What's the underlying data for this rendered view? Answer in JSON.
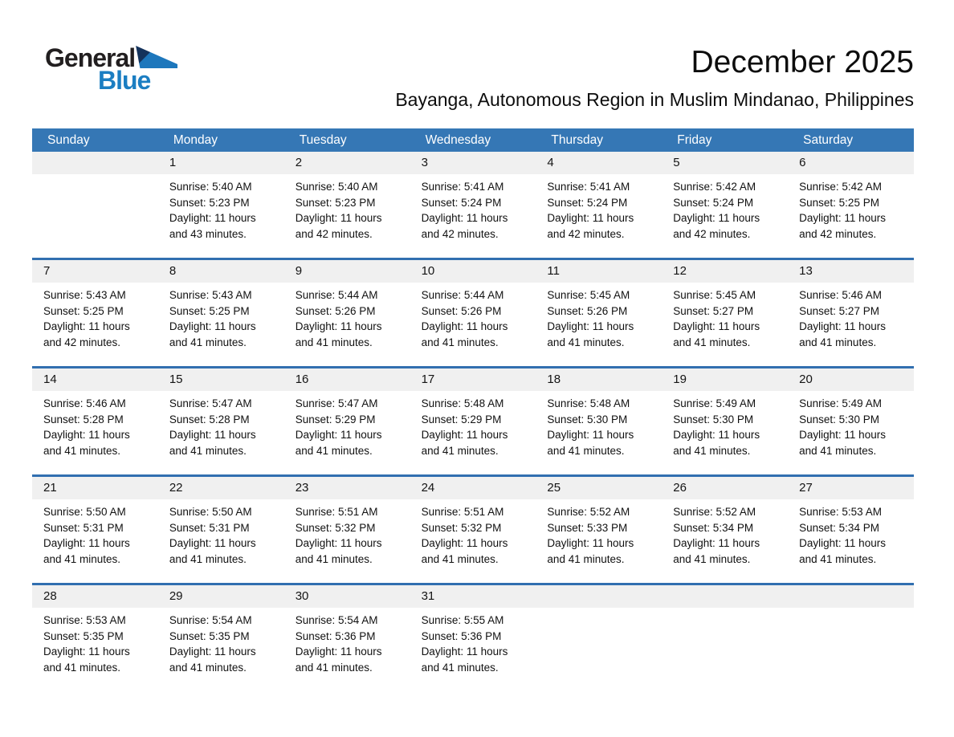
{
  "logo": {
    "word1": "General",
    "word2": "Blue"
  },
  "header": {
    "title": "December 2025",
    "subtitle": "Bayanga, Autonomous Region in Muslim Mindanao, Philippines"
  },
  "colors": {
    "weekday_header_bg": "#3577b5",
    "weekday_header_text": "#ffffff",
    "week_separator": "#316fb0",
    "day_strip_bg": "#f0f0f0",
    "logo_black": "#221f20",
    "logo_blue": "#1b7ec2",
    "logo_triangle_navy": "#14335c",
    "logo_triangle_blue": "#1d77bc"
  },
  "calendar": {
    "weekday_headers": [
      "Sunday",
      "Monday",
      "Tuesday",
      "Wednesday",
      "Thursday",
      "Friday",
      "Saturday"
    ],
    "labels": {
      "sunrise": "Sunrise:",
      "sunset": "Sunset:",
      "daylight": "Daylight:"
    },
    "weeks": [
      [
        null,
        {
          "day": "1",
          "sunrise": "5:40 AM",
          "sunset": "5:23 PM",
          "daylight": "11 hours and 43 minutes."
        },
        {
          "day": "2",
          "sunrise": "5:40 AM",
          "sunset": "5:23 PM",
          "daylight": "11 hours and 42 minutes."
        },
        {
          "day": "3",
          "sunrise": "5:41 AM",
          "sunset": "5:24 PM",
          "daylight": "11 hours and 42 minutes."
        },
        {
          "day": "4",
          "sunrise": "5:41 AM",
          "sunset": "5:24 PM",
          "daylight": "11 hours and 42 minutes."
        },
        {
          "day": "5",
          "sunrise": "5:42 AM",
          "sunset": "5:24 PM",
          "daylight": "11 hours and 42 minutes."
        },
        {
          "day": "6",
          "sunrise": "5:42 AM",
          "sunset": "5:25 PM",
          "daylight": "11 hours and 42 minutes."
        }
      ],
      [
        {
          "day": "7",
          "sunrise": "5:43 AM",
          "sunset": "5:25 PM",
          "daylight": "11 hours and 42 minutes."
        },
        {
          "day": "8",
          "sunrise": "5:43 AM",
          "sunset": "5:25 PM",
          "daylight": "11 hours and 41 minutes."
        },
        {
          "day": "9",
          "sunrise": "5:44 AM",
          "sunset": "5:26 PM",
          "daylight": "11 hours and 41 minutes."
        },
        {
          "day": "10",
          "sunrise": "5:44 AM",
          "sunset": "5:26 PM",
          "daylight": "11 hours and 41 minutes."
        },
        {
          "day": "11",
          "sunrise": "5:45 AM",
          "sunset": "5:26 PM",
          "daylight": "11 hours and 41 minutes."
        },
        {
          "day": "12",
          "sunrise": "5:45 AM",
          "sunset": "5:27 PM",
          "daylight": "11 hours and 41 minutes."
        },
        {
          "day": "13",
          "sunrise": "5:46 AM",
          "sunset": "5:27 PM",
          "daylight": "11 hours and 41 minutes."
        }
      ],
      [
        {
          "day": "14",
          "sunrise": "5:46 AM",
          "sunset": "5:28 PM",
          "daylight": "11 hours and 41 minutes."
        },
        {
          "day": "15",
          "sunrise": "5:47 AM",
          "sunset": "5:28 PM",
          "daylight": "11 hours and 41 minutes."
        },
        {
          "day": "16",
          "sunrise": "5:47 AM",
          "sunset": "5:29 PM",
          "daylight": "11 hours and 41 minutes."
        },
        {
          "day": "17",
          "sunrise": "5:48 AM",
          "sunset": "5:29 PM",
          "daylight": "11 hours and 41 minutes."
        },
        {
          "day": "18",
          "sunrise": "5:48 AM",
          "sunset": "5:30 PM",
          "daylight": "11 hours and 41 minutes."
        },
        {
          "day": "19",
          "sunrise": "5:49 AM",
          "sunset": "5:30 PM",
          "daylight": "11 hours and 41 minutes."
        },
        {
          "day": "20",
          "sunrise": "5:49 AM",
          "sunset": "5:30 PM",
          "daylight": "11 hours and 41 minutes."
        }
      ],
      [
        {
          "day": "21",
          "sunrise": "5:50 AM",
          "sunset": "5:31 PM",
          "daylight": "11 hours and 41 minutes."
        },
        {
          "day": "22",
          "sunrise": "5:50 AM",
          "sunset": "5:31 PM",
          "daylight": "11 hours and 41 minutes."
        },
        {
          "day": "23",
          "sunrise": "5:51 AM",
          "sunset": "5:32 PM",
          "daylight": "11 hours and 41 minutes."
        },
        {
          "day": "24",
          "sunrise": "5:51 AM",
          "sunset": "5:32 PM",
          "daylight": "11 hours and 41 minutes."
        },
        {
          "day": "25",
          "sunrise": "5:52 AM",
          "sunset": "5:33 PM",
          "daylight": "11 hours and 41 minutes."
        },
        {
          "day": "26",
          "sunrise": "5:52 AM",
          "sunset": "5:34 PM",
          "daylight": "11 hours and 41 minutes."
        },
        {
          "day": "27",
          "sunrise": "5:53 AM",
          "sunset": "5:34 PM",
          "daylight": "11 hours and 41 minutes."
        }
      ],
      [
        {
          "day": "28",
          "sunrise": "5:53 AM",
          "sunset": "5:35 PM",
          "daylight": "11 hours and 41 minutes."
        },
        {
          "day": "29",
          "sunrise": "5:54 AM",
          "sunset": "5:35 PM",
          "daylight": "11 hours and 41 minutes."
        },
        {
          "day": "30",
          "sunrise": "5:54 AM",
          "sunset": "5:36 PM",
          "daylight": "11 hours and 41 minutes."
        },
        {
          "day": "31",
          "sunrise": "5:55 AM",
          "sunset": "5:36 PM",
          "daylight": "11 hours and 41 minutes."
        },
        null,
        null,
        null
      ]
    ]
  }
}
